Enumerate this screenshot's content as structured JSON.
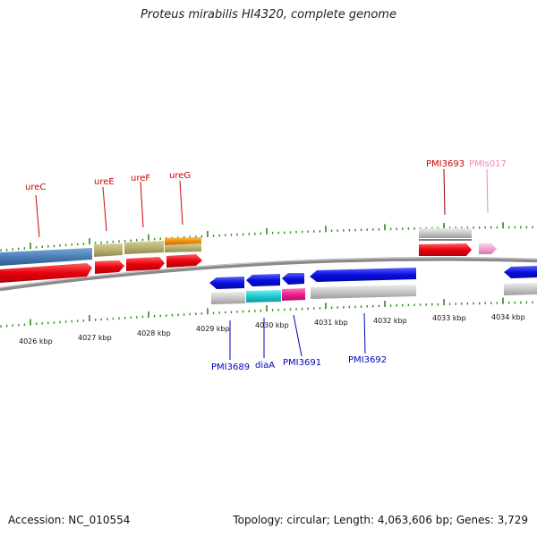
{
  "title": "Proteus mirabilis HI4320, complete genome",
  "footer": {
    "accession": "Accession: NC_010554",
    "topology": "Topology: circular; Length: 4,063,606 bp; Genes: 3,729"
  },
  "scale_labels": [
    "4026 kbp",
    "4027 kbp",
    "4028 kbp",
    "4029 kbp",
    "4030 kbp",
    "4031 kbp",
    "4032 kbp",
    "4033 kbp",
    "4034 kbp"
  ],
  "gene_labels": {
    "ureC": "ureC",
    "ureE": "ureE",
    "ureF": "ureF",
    "ureG": "ureG",
    "PMI3693": "PMI3693",
    "PMIs017": "PMIs017",
    "PMI3689": "PMI3689",
    "diaA": "diaA",
    "PMI3691": "PMI3691",
    "PMI3692": "PMI3692"
  },
  "colors": {
    "forward_cds": "#e8000e",
    "reverse_cds": "#0a10e0",
    "ure_operon_rna": "#4a7fb5",
    "ureE_ureF_product": "#b7b070",
    "ureG_product": "#f0900a",
    "diaA_product": "#1ec9cf",
    "PMI3691_product": "#ee1e8e",
    "hypothetical_product": "#c8c8c8",
    "ncRNA": "#f4a0cf",
    "forward_label": "#cc0000",
    "reverse_label": "#0000bb",
    "ncRNA_label": "#ee88bb",
    "tick": "#2a8a1a",
    "backbone": "#888888"
  }
}
